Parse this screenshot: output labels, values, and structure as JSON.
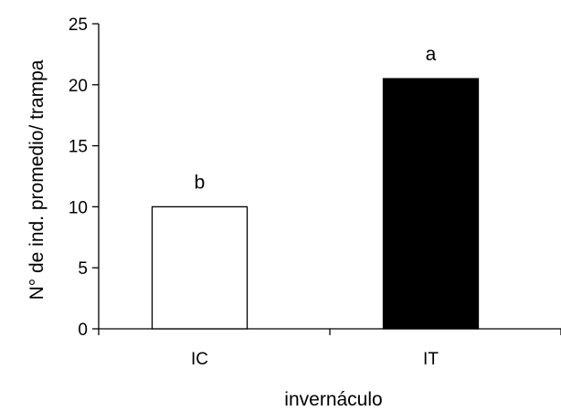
{
  "chart_data": {
    "type": "bar",
    "categories": [
      "IC",
      "IT"
    ],
    "values": [
      10,
      20.5
    ],
    "significance_labels": [
      "b",
      "a"
    ],
    "bar_colors": [
      "#ffffff",
      "#000000"
    ],
    "bar_stroke": "#000000",
    "xlabel": "invernáculo",
    "ylabel": "N° de ind. promedio/ trampa",
    "ylim": [
      0,
      25
    ],
    "yticks": [
      0,
      5,
      10,
      15,
      20,
      25
    ],
    "grid": false
  }
}
